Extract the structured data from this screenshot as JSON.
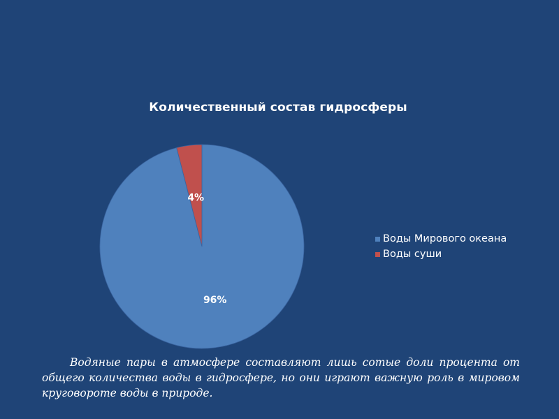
{
  "chart_data": {
    "type": "pie",
    "title": "Количественный состав гидросферы",
    "categories": [
      "Воды Мирового океана",
      "Воды суши"
    ],
    "values": [
      96,
      4
    ],
    "value_labels": [
      "96%",
      "4%"
    ],
    "colors": [
      "#4f81bd",
      "#c0504d"
    ],
    "legend_placement": "right"
  },
  "caption": "Водяные пары в атмосфере составляют лишь сотые доли процента от общего количества воды в гидросфере, но они играют важную роль в мировом круговороте воды в природе."
}
